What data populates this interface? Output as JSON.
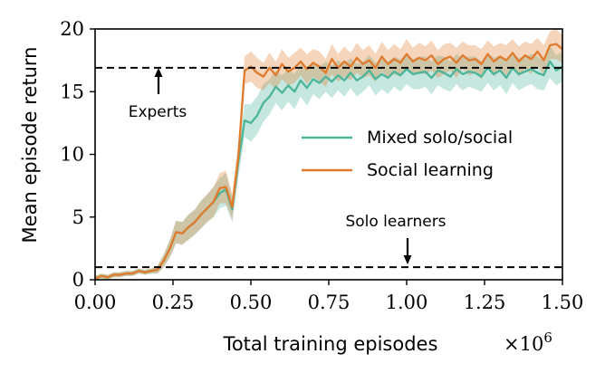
{
  "chart_data": {
    "type": "line",
    "xlabel": "Total training episodes",
    "x_scale_label": "×10",
    "x_scale_exp": "6",
    "ylabel": "Mean episode return",
    "xlim": [
      0.0,
      1.5
    ],
    "ylim": [
      0,
      20
    ],
    "x_ticks": [
      0.0,
      0.25,
      0.5,
      0.75,
      1.0,
      1.25,
      1.5
    ],
    "x_tick_labels": [
      "0.00",
      "0.25",
      "0.50",
      "0.75",
      "1.00",
      "1.25",
      "1.50"
    ],
    "y_ticks": [
      0,
      5,
      10,
      15,
      20
    ],
    "y_tick_labels": [
      "0",
      "5",
      "10",
      "15",
      "20"
    ],
    "grid": false,
    "legend_position": "right",
    "reference_lines": [
      {
        "y": 16.9,
        "label": "Experts",
        "style": "dashed"
      },
      {
        "y": 1.0,
        "label": "Solo learners",
        "style": "dashed"
      }
    ],
    "annotations": [
      {
        "text": "Experts",
        "x": 0.2,
        "arrow": "up"
      },
      {
        "text": "Solo learners",
        "x": 1.0,
        "arrow": "down"
      }
    ],
    "series": [
      {
        "name": "Mixed solo/social",
        "color": "#4bb59a",
        "x": [
          0.0,
          0.02,
          0.04,
          0.06,
          0.08,
          0.1,
          0.12,
          0.14,
          0.16,
          0.18,
          0.2,
          0.22,
          0.24,
          0.26,
          0.28,
          0.3,
          0.32,
          0.34,
          0.36,
          0.38,
          0.4,
          0.42,
          0.44,
          0.46,
          0.48,
          0.5,
          0.52,
          0.54,
          0.56,
          0.58,
          0.6,
          0.62,
          0.64,
          0.66,
          0.68,
          0.7,
          0.72,
          0.74,
          0.76,
          0.78,
          0.8,
          0.82,
          0.84,
          0.86,
          0.88,
          0.9,
          0.92,
          0.94,
          0.96,
          0.98,
          1.0,
          1.02,
          1.04,
          1.06,
          1.08,
          1.1,
          1.12,
          1.14,
          1.16,
          1.18,
          1.2,
          1.22,
          1.24,
          1.26,
          1.28,
          1.3,
          1.32,
          1.34,
          1.36,
          1.38,
          1.4,
          1.42,
          1.44,
          1.46,
          1.48,
          1.5
        ],
        "y": [
          0.1,
          0.3,
          0.2,
          0.4,
          0.4,
          0.5,
          0.5,
          0.7,
          0.6,
          0.7,
          0.8,
          1.5,
          2.5,
          3.8,
          3.7,
          4.2,
          4.6,
          5.2,
          5.7,
          6.2,
          6.9,
          7.2,
          5.6,
          9.4,
          12.7,
          12.5,
          13.1,
          14.1,
          14.6,
          15.4,
          14.9,
          15.5,
          15.0,
          15.9,
          15.3,
          16.0,
          15.7,
          16.2,
          15.8,
          16.3,
          15.9,
          16.5,
          15.9,
          16.2,
          16.7,
          16.0,
          16.4,
          16.1,
          16.6,
          16.3,
          16.8,
          16.4,
          16.5,
          16.6,
          16.1,
          16.7,
          16.5,
          16.2,
          16.8,
          16.4,
          16.6,
          16.5,
          16.2,
          16.9,
          16.4,
          16.7,
          16.1,
          16.9,
          16.4,
          16.6,
          16.8,
          16.5,
          16.3,
          17.4,
          16.7,
          17.0
        ],
        "band": [
          0.2,
          0.2,
          0.2,
          0.2,
          0.2,
          0.2,
          0.2,
          0.2,
          0.2,
          0.2,
          0.3,
          0.5,
          0.7,
          0.9,
          0.9,
          1.0,
          1.0,
          1.1,
          1.1,
          1.2,
          1.2,
          1.3,
          1.0,
          1.2,
          1.3,
          1.5,
          1.5,
          1.5,
          1.4,
          1.3,
          1.4,
          1.3,
          1.4,
          1.3,
          1.4,
          1.2,
          1.3,
          1.2,
          1.3,
          1.2,
          1.3,
          1.2,
          1.3,
          1.2,
          1.2,
          1.3,
          1.2,
          1.3,
          1.2,
          1.3,
          1.2,
          1.2,
          1.3,
          1.2,
          1.3,
          1.2,
          1.3,
          1.2,
          1.2,
          1.3,
          1.2,
          1.3,
          1.2,
          1.2,
          1.3,
          1.2,
          1.3,
          1.2,
          1.3,
          1.2,
          1.2,
          1.3,
          1.2,
          1.3,
          1.2,
          1.2
        ]
      },
      {
        "name": "Social learning",
        "color": "#e07b2e",
        "x": [
          0.0,
          0.02,
          0.04,
          0.06,
          0.08,
          0.1,
          0.12,
          0.14,
          0.16,
          0.18,
          0.2,
          0.22,
          0.24,
          0.26,
          0.28,
          0.3,
          0.32,
          0.34,
          0.36,
          0.38,
          0.4,
          0.42,
          0.44,
          0.46,
          0.48,
          0.5,
          0.52,
          0.54,
          0.56,
          0.58,
          0.6,
          0.62,
          0.64,
          0.66,
          0.68,
          0.7,
          0.72,
          0.74,
          0.76,
          0.78,
          0.8,
          0.82,
          0.84,
          0.86,
          0.88,
          0.9,
          0.92,
          0.94,
          0.96,
          0.98,
          1.0,
          1.02,
          1.04,
          1.06,
          1.08,
          1.1,
          1.12,
          1.14,
          1.16,
          1.18,
          1.2,
          1.22,
          1.24,
          1.26,
          1.28,
          1.3,
          1.32,
          1.34,
          1.36,
          1.38,
          1.4,
          1.42,
          1.44,
          1.46,
          1.48,
          1.5
        ],
        "y": [
          0.1,
          0.3,
          0.2,
          0.4,
          0.4,
          0.5,
          0.5,
          0.7,
          0.6,
          0.7,
          0.8,
          1.5,
          2.5,
          3.8,
          3.7,
          4.2,
          4.6,
          5.2,
          5.7,
          6.2,
          7.3,
          7.4,
          5.8,
          9.8,
          16.7,
          17.0,
          16.5,
          16.2,
          16.9,
          16.3,
          17.2,
          16.6,
          16.9,
          17.4,
          16.8,
          17.3,
          17.0,
          16.5,
          17.6,
          16.9,
          17.4,
          17.0,
          17.7,
          17.2,
          17.5,
          16.9,
          17.8,
          17.2,
          17.6,
          17.3,
          18.0,
          17.4,
          17.7,
          17.5,
          17.9,
          17.2,
          17.6,
          17.8,
          17.3,
          17.9,
          17.5,
          17.6,
          17.2,
          18.0,
          17.4,
          17.8,
          17.5,
          18.1,
          17.4,
          17.9,
          17.6,
          18.2,
          17.5,
          18.7,
          18.8,
          18.4
        ],
        "band": [
          0.2,
          0.2,
          0.2,
          0.2,
          0.2,
          0.2,
          0.2,
          0.2,
          0.2,
          0.2,
          0.3,
          0.5,
          0.7,
          0.9,
          0.9,
          1.0,
          1.0,
          1.1,
          1.1,
          1.2,
          1.2,
          1.3,
          1.0,
          1.2,
          1.1,
          1.2,
          1.2,
          1.1,
          1.2,
          1.1,
          1.2,
          1.1,
          1.2,
          1.1,
          1.2,
          1.1,
          1.2,
          1.1,
          1.2,
          1.1,
          1.2,
          1.1,
          1.2,
          1.1,
          1.2,
          1.1,
          1.2,
          1.1,
          1.2,
          1.1,
          1.2,
          1.1,
          1.2,
          1.1,
          1.2,
          1.1,
          1.2,
          1.1,
          1.2,
          1.1,
          1.2,
          1.1,
          1.2,
          1.1,
          1.2,
          1.1,
          1.2,
          1.1,
          1.2,
          1.1,
          1.2,
          1.1,
          1.2,
          1.1,
          1.2,
          1.1
        ]
      }
    ]
  }
}
